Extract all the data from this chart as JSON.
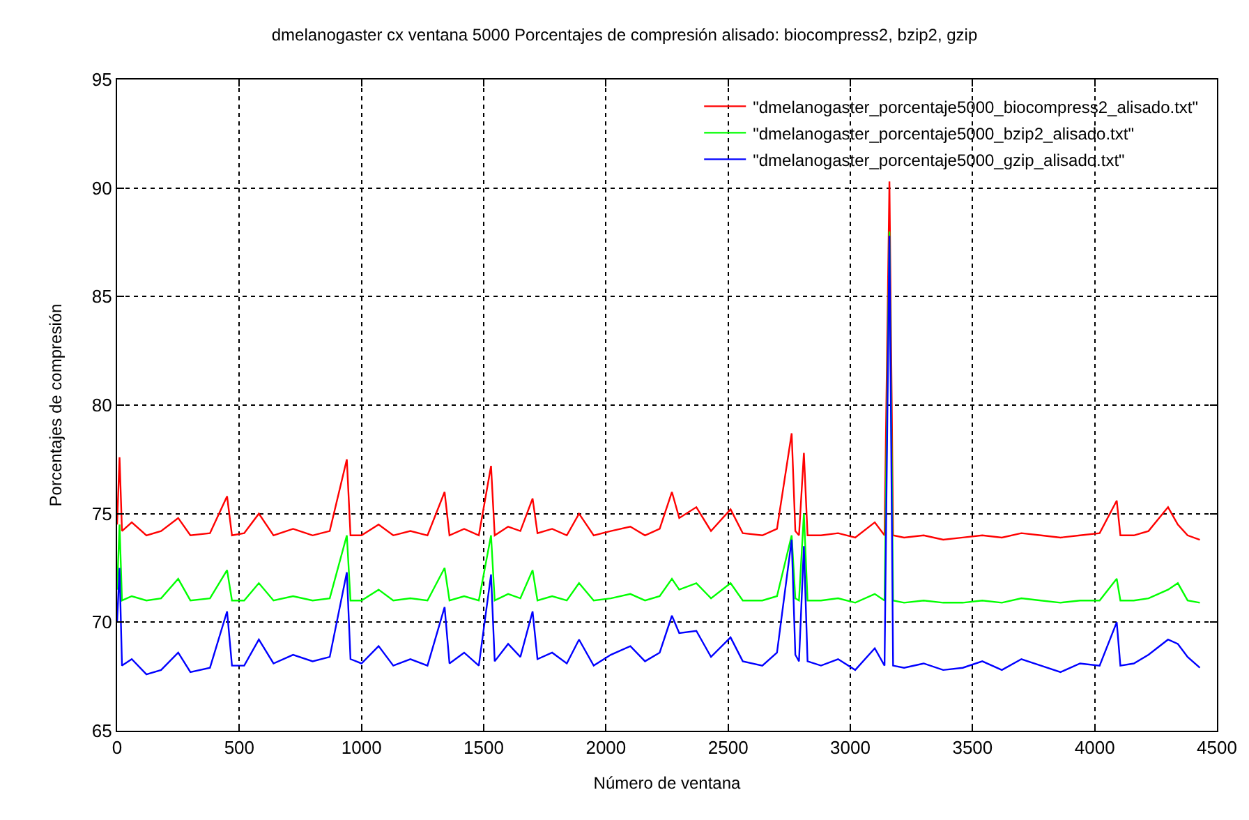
{
  "chart_data": {
    "type": "line",
    "title": "dmelanogaster cx ventana 5000 Porcentajes de compresión alisado: biocompress2, bzip2, gzip",
    "xlabel": "Número de ventana",
    "ylabel": "Porcentajes de compresión",
    "x": [
      0,
      10,
      20,
      60,
      120,
      180,
      250,
      300,
      380,
      450,
      470,
      520,
      580,
      640,
      720,
      800,
      870,
      940,
      955,
      1000,
      1070,
      1130,
      1200,
      1270,
      1340,
      1360,
      1420,
      1480,
      1530,
      1545,
      1600,
      1650,
      1700,
      1720,
      1780,
      1840,
      1890,
      1950,
      2020,
      2100,
      2160,
      2220,
      2270,
      2300,
      2370,
      2430,
      2510,
      2560,
      2640,
      2700,
      2760,
      2775,
      2790,
      2810,
      2825,
      2880,
      2950,
      3020,
      3100,
      3140,
      3160,
      3175,
      3220,
      3300,
      3380,
      3460,
      3540,
      3620,
      3700,
      3780,
      3860,
      3940,
      4020,
      4090,
      4105,
      4160,
      4220,
      4300,
      4340,
      4380,
      4430
    ],
    "series": [
      {
        "name": "\"dmelanogaster_porcentaje5000_biocompress2_alisado.txt\"",
        "color": "#ff0000",
        "values": [
          74.5,
          77.6,
          74.2,
          74.6,
          74.0,
          74.2,
          74.8,
          74.0,
          74.1,
          75.8,
          74.0,
          74.1,
          75.0,
          74.0,
          74.3,
          74.0,
          74.2,
          77.5,
          74.0,
          74.0,
          74.5,
          74.0,
          74.2,
          74.0,
          76.0,
          74.0,
          74.3,
          74.0,
          77.2,
          74.0,
          74.4,
          74.2,
          75.7,
          74.1,
          74.3,
          74.0,
          75.0,
          74.0,
          74.2,
          74.4,
          74.0,
          74.3,
          76.0,
          74.8,
          75.3,
          74.2,
          75.2,
          74.1,
          74.0,
          74.3,
          78.7,
          74.2,
          74.0,
          77.8,
          74.0,
          74.0,
          74.1,
          73.9,
          74.6,
          74.0,
          90.3,
          74.0,
          73.9,
          74.0,
          73.8,
          73.9,
          74.0,
          73.9,
          74.1,
          74.0,
          73.9,
          74.0,
          74.1,
          75.6,
          74.0,
          74.0,
          74.2,
          75.3,
          74.5,
          74.0,
          73.8
        ]
      },
      {
        "name": "\"dmelanogaster_porcentaje5000_bzip2_alisado.txt\"",
        "color": "#00ff00",
        "values": [
          71.5,
          74.5,
          71.0,
          71.2,
          71.0,
          71.1,
          72.0,
          71.0,
          71.1,
          72.4,
          71.0,
          71.0,
          71.8,
          71.0,
          71.2,
          71.0,
          71.1,
          74.0,
          71.0,
          71.0,
          71.5,
          71.0,
          71.1,
          71.0,
          72.5,
          71.0,
          71.2,
          71.0,
          74.0,
          71.0,
          71.3,
          71.1,
          72.4,
          71.0,
          71.2,
          71.0,
          71.8,
          71.0,
          71.1,
          71.3,
          71.0,
          71.2,
          72.0,
          71.5,
          71.8,
          71.1,
          71.8,
          71.0,
          71.0,
          71.2,
          74.0,
          71.1,
          71.0,
          75.0,
          71.0,
          71.0,
          71.1,
          70.9,
          71.3,
          71.0,
          88.0,
          71.0,
          70.9,
          71.0,
          70.9,
          70.9,
          71.0,
          70.9,
          71.1,
          71.0,
          70.9,
          71.0,
          71.0,
          72.0,
          71.0,
          71.0,
          71.1,
          71.5,
          71.8,
          71.0,
          70.9
        ]
      },
      {
        "name": "\"dmelanogaster_porcentaje5000_gzip_alisado.txt\"",
        "color": "#0000ff",
        "values": [
          70.0,
          72.5,
          68.0,
          68.3,
          67.6,
          67.8,
          68.6,
          67.7,
          67.9,
          70.5,
          68.0,
          68.0,
          69.2,
          68.1,
          68.5,
          68.2,
          68.4,
          72.3,
          68.3,
          68.1,
          68.9,
          68.0,
          68.3,
          68.0,
          70.7,
          68.1,
          68.6,
          68.0,
          72.2,
          68.2,
          69.0,
          68.4,
          70.5,
          68.3,
          68.6,
          68.1,
          69.2,
          68.0,
          68.5,
          68.9,
          68.2,
          68.6,
          70.3,
          69.5,
          69.6,
          68.4,
          69.3,
          68.2,
          68.0,
          68.6,
          73.8,
          68.5,
          68.2,
          73.5,
          68.2,
          68.0,
          68.3,
          67.8,
          68.8,
          68.0,
          87.8,
          68.0,
          67.9,
          68.1,
          67.8,
          67.9,
          68.2,
          67.8,
          68.3,
          68.0,
          67.7,
          68.1,
          68.0,
          70.0,
          68.0,
          68.1,
          68.5,
          69.2,
          69.0,
          68.4,
          67.9
        ]
      }
    ],
    "xlim": [
      0,
      4500
    ],
    "xticks": [
      0,
      500,
      1000,
      1500,
      2000,
      2500,
      3000,
      3500,
      4000,
      4500
    ],
    "ylim": [
      65,
      95
    ],
    "yticks": [
      65,
      70,
      75,
      80,
      85,
      90,
      95
    ],
    "grid": true,
    "legend": "top right",
    "marker": "none",
    "line_style": "solid"
  }
}
